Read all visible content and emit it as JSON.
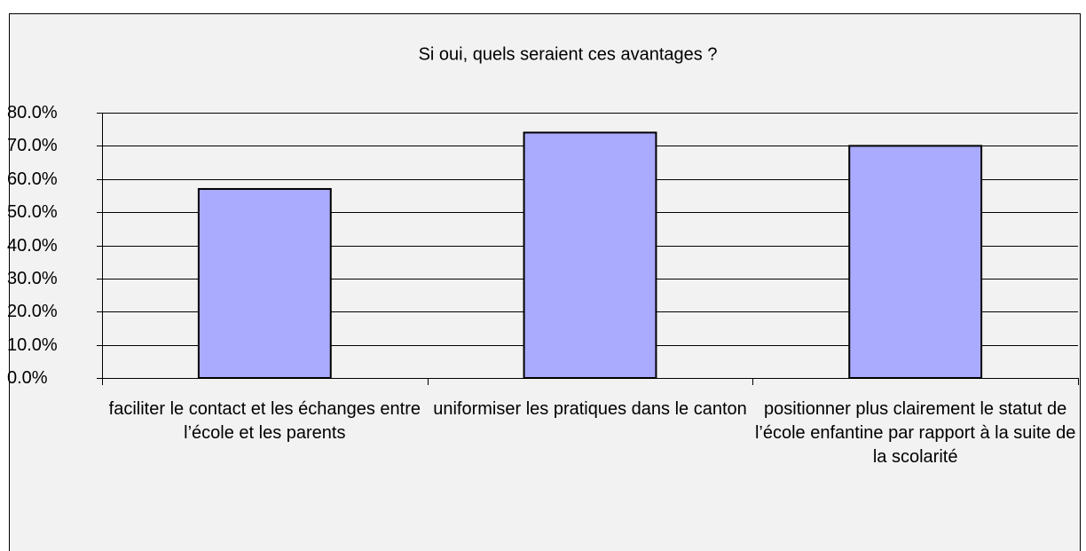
{
  "chart_data": {
    "type": "bar",
    "title": "Si oui, quels seraient ces avantages ?",
    "categories": [
      "faciliter le contact et les échanges entre l’école et les parents",
      "uniformiser les pratiques dans le canton",
      "positionner plus clairement le statut de l’école enfantine par rapport à la suite de la scolarité"
    ],
    "values": [
      57,
      74,
      70
    ],
    "color": "#aaaaff",
    "ylim": [
      0,
      80
    ],
    "yticks": [
      {
        "value": 0,
        "label": "0.0%"
      },
      {
        "value": 10,
        "label": "10.0%"
      },
      {
        "value": 20,
        "label": "20.0%"
      },
      {
        "value": 30,
        "label": "30.0%"
      },
      {
        "value": 40,
        "label": "40.0%"
      },
      {
        "value": 50,
        "label": "50.0%"
      },
      {
        "value": 60,
        "label": "60.0%"
      },
      {
        "value": 70,
        "label": "70.0%"
      },
      {
        "value": 80,
        "label": "80.0%"
      }
    ],
    "grid": true
  }
}
